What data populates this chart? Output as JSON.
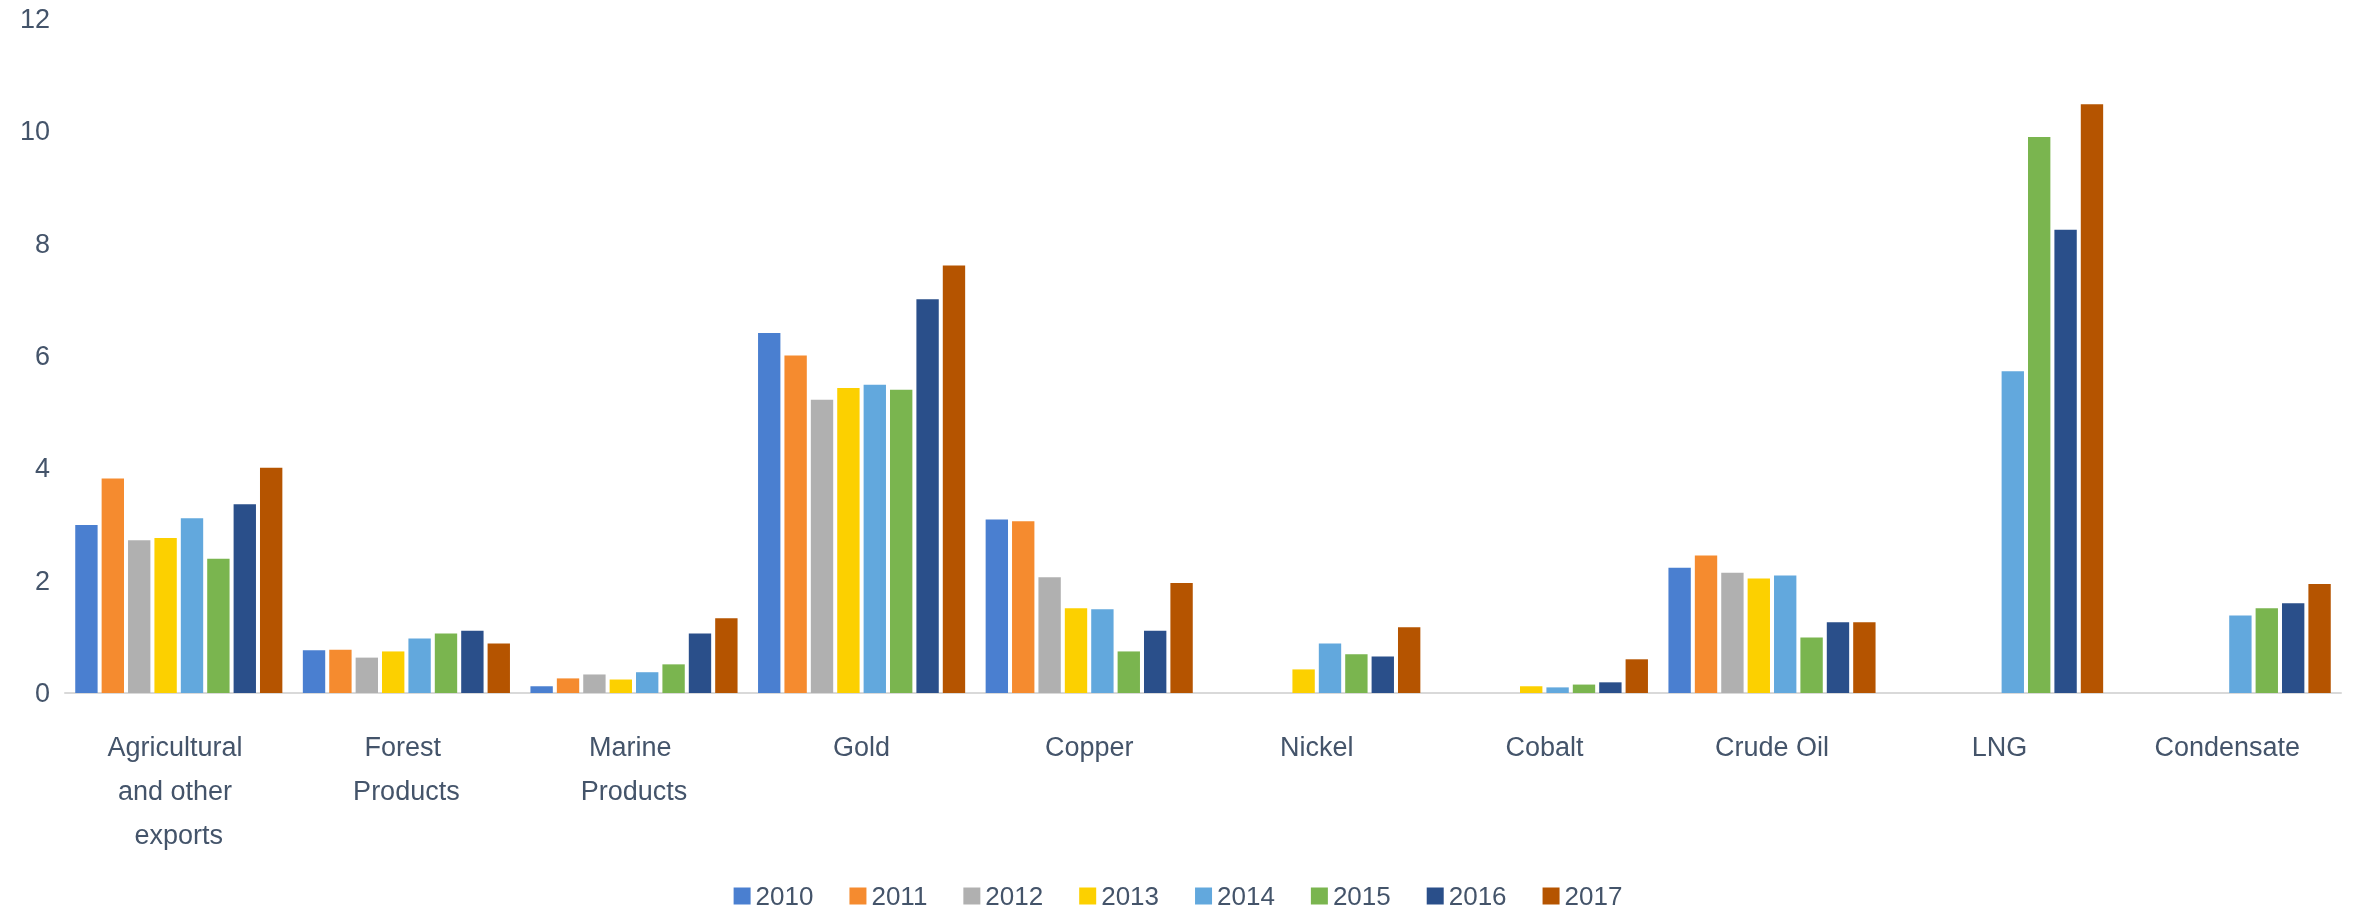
{
  "chart_data": {
    "type": "bar",
    "categories": [
      "Agricultural and other exports",
      "Forest Products",
      "Marine Products",
      "Gold",
      "Copper",
      "Nickel",
      "Cobalt",
      "Crude Oil",
      "LNG",
      "Condensate"
    ],
    "series": [
      {
        "name": "2010",
        "color": "#4a7fd0",
        "values": [
          2.99,
          0.76,
          0.12,
          6.41,
          3.09,
          null,
          null,
          2.23,
          null,
          null
        ]
      },
      {
        "name": "2011",
        "color": "#f58b2f",
        "values": [
          3.82,
          0.77,
          0.26,
          6.01,
          3.06,
          null,
          null,
          2.45,
          null,
          null
        ]
      },
      {
        "name": "2012",
        "color": "#b0b0b0",
        "values": [
          2.72,
          0.63,
          0.33,
          5.22,
          2.06,
          null,
          null,
          2.14,
          null,
          null
        ]
      },
      {
        "name": "2013",
        "color": "#fcd000",
        "values": [
          2.76,
          0.74,
          0.24,
          5.43,
          1.51,
          0.42,
          0.12,
          2.04,
          null,
          null
        ]
      },
      {
        "name": "2014",
        "color": "#62a8dd",
        "values": [
          3.11,
          0.97,
          0.37,
          5.49,
          1.49,
          0.88,
          0.1,
          2.09,
          5.73,
          1.38
        ]
      },
      {
        "name": "2015",
        "color": "#7ab54f",
        "values": [
          2.39,
          1.06,
          0.51,
          5.4,
          0.74,
          0.69,
          0.15,
          0.99,
          9.9,
          1.51
        ]
      },
      {
        "name": "2016",
        "color": "#2a4f8a",
        "values": [
          3.36,
          1.11,
          1.06,
          7.01,
          1.11,
          0.65,
          0.19,
          1.26,
          8.25,
          1.6
        ]
      },
      {
        "name": "2017",
        "color": "#b55400",
        "values": [
          4.01,
          0.88,
          1.33,
          7.61,
          1.96,
          1.17,
          0.6,
          1.26,
          10.48,
          1.94
        ]
      }
    ],
    "ylim": [
      0,
      12
    ],
    "yticks": [
      0,
      2,
      4,
      6,
      8,
      10,
      12
    ],
    "grid": false,
    "legend": "bottom"
  }
}
